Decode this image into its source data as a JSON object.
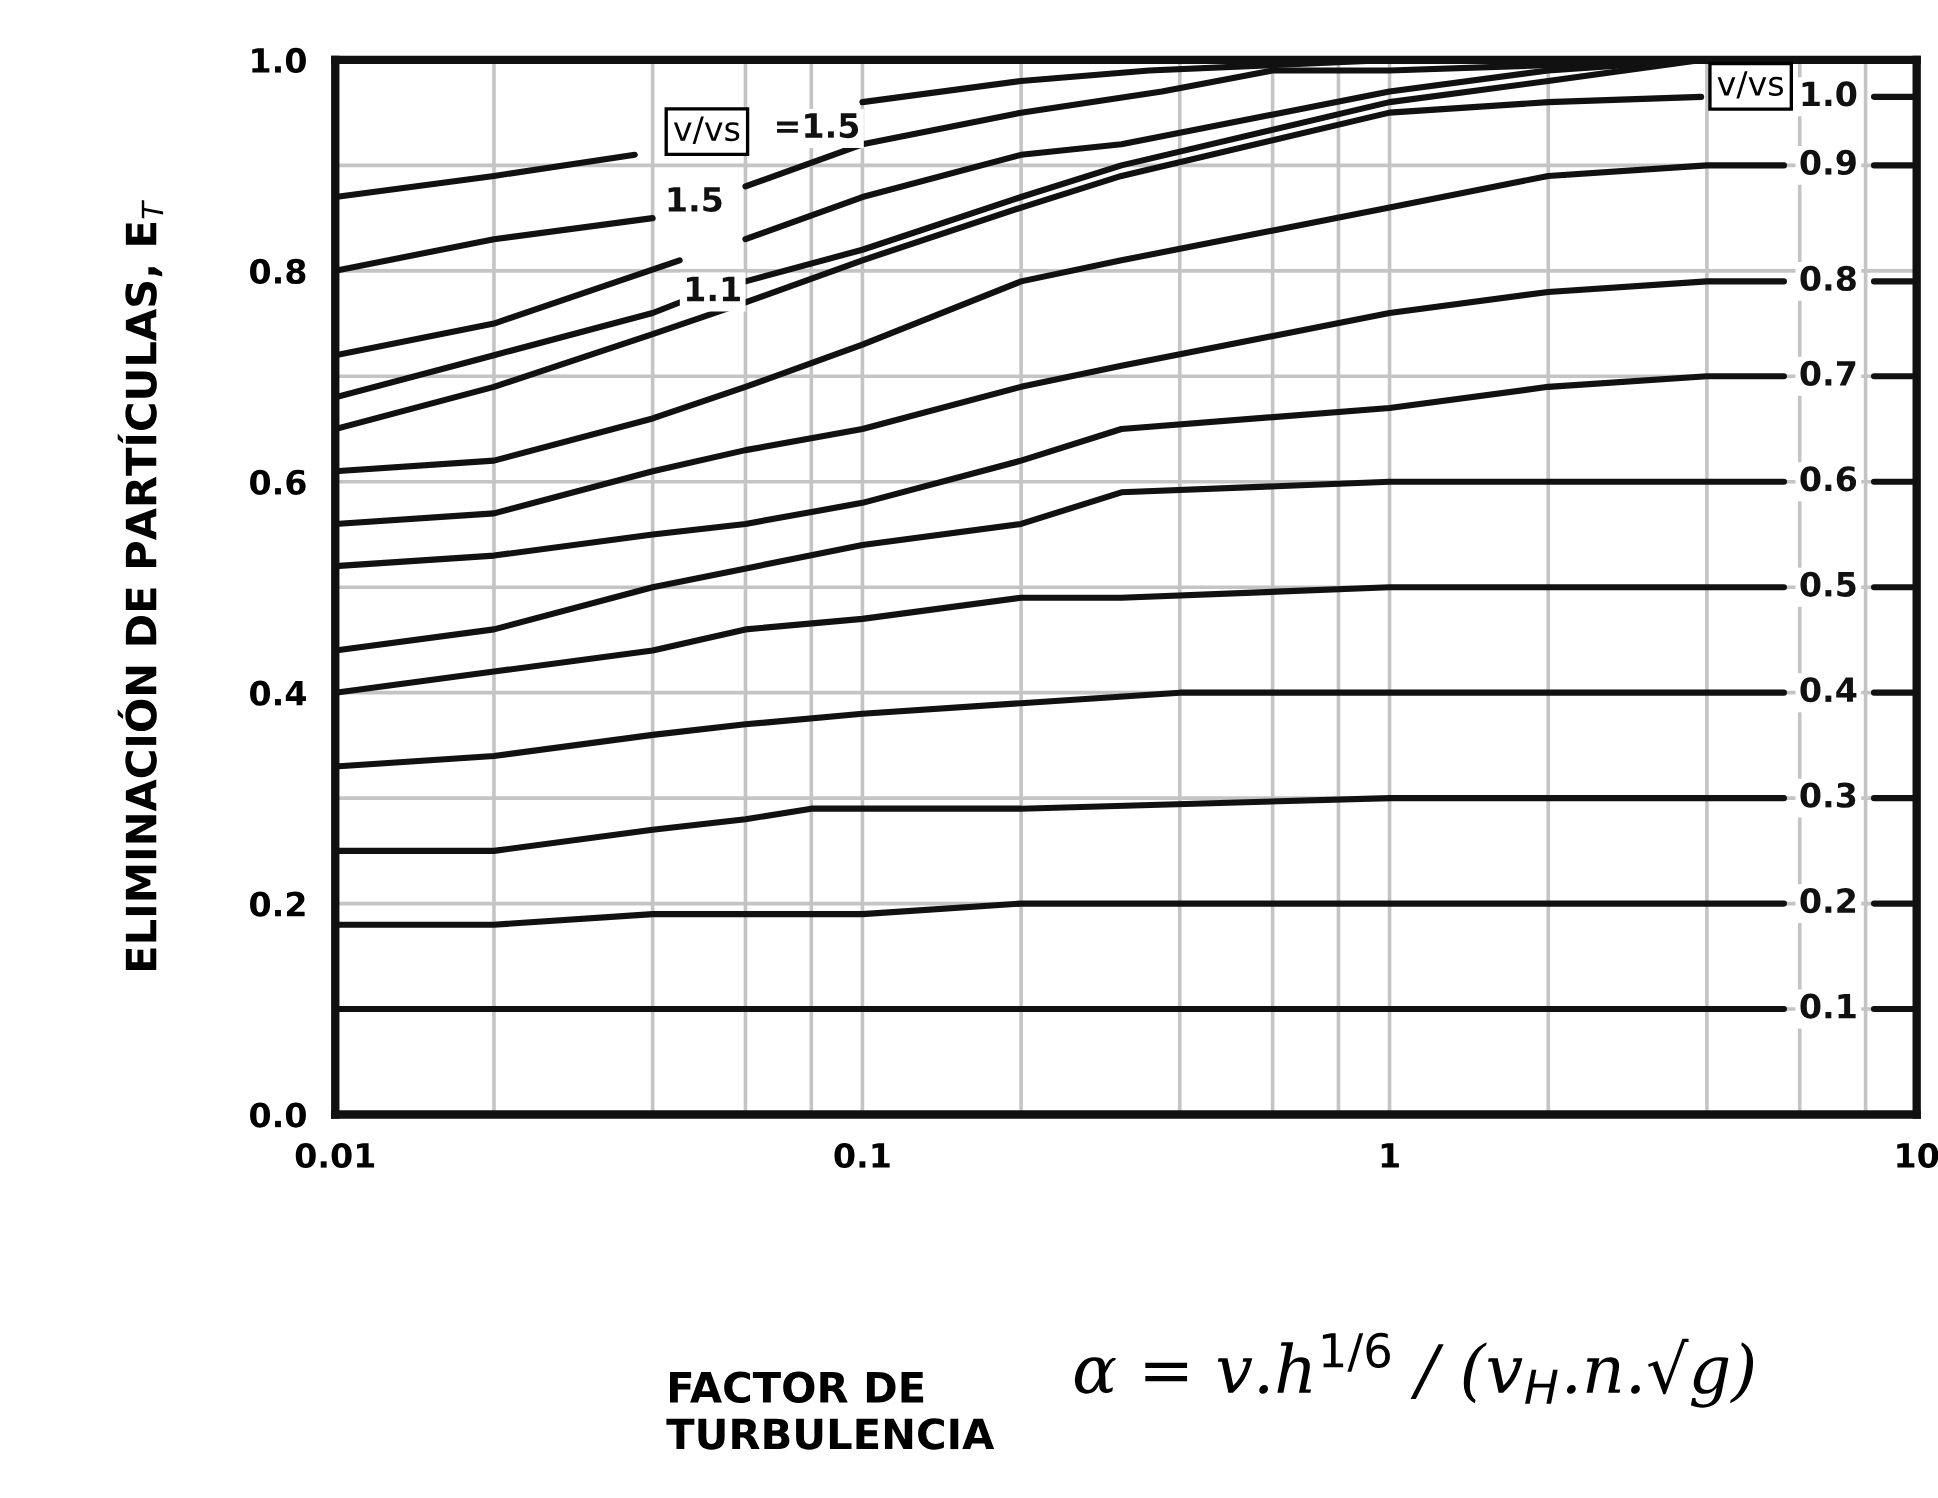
{
  "chart_data": {
    "type": "line",
    "xlabel": "FACTOR DE\nTURBULENCIA",
    "ylabel": "ELIMINACIÓN DE PARTÍCULAS, E$_{T}$",
    "log": "x",
    "xlim": [
      0.01,
      10
    ],
    "ylim": [
      0,
      1
    ],
    "xticks": [
      0.01,
      {
        "value": 0.02,
        "label": null
      },
      {
        "value": 0.04,
        "label": null
      },
      {
        "value": 0.06,
        "label": null
      },
      {
        "value": 0.08,
        "label": null
      },
      0.1,
      {
        "value": 0.2,
        "label": null
      },
      {
        "value": 0.4,
        "label": null
      },
      {
        "value": 0.6,
        "label": null
      },
      {
        "value": 0.8,
        "label": null
      },
      1,
      {
        "value": 2,
        "label": null
      },
      {
        "value": 4,
        "label": null
      },
      {
        "value": 6,
        "label": null
      },
      {
        "value": 8,
        "label": null
      },
      10
    ],
    "yticks": [
      {
        "value": 0,
        "label": "0.0"
      },
      {
        "value": 0.1,
        "label": null
      },
      0.2,
      {
        "value": 0.3,
        "label": null
      },
      0.4,
      {
        "value": 0.5,
        "label": null
      },
      0.6,
      {
        "value": 0.7,
        "label": null
      },
      0.8,
      {
        "value": 0.9,
        "label": null
      },
      {
        "value": 1,
        "label": "1.0"
      }
    ],
    "grid": true,
    "series": [
      {
        "name": "=1.5",
        "color": "#111111",
        "x": [
          0.01,
          0.02,
          0.037,
          0.082,
          0.1,
          0.2,
          0.35,
          1,
          3.9
        ],
        "values": [
          0.87,
          0.89,
          0.91,
          null,
          0.96,
          0.98,
          0.99,
          1.0,
          1.0
        ]
      },
      {
        "name": "1.5",
        "color": "#111111",
        "x": [
          0.01,
          0.02,
          0.04,
          0.048,
          0.06,
          0.1,
          0.2,
          0.37,
          0.6,
          1,
          3.9
        ],
        "values": [
          0.8,
          0.83,
          0.85,
          null,
          0.88,
          0.92,
          0.95,
          0.97,
          0.99,
          0.99,
          1.0
        ]
      },
      {
        "color": "#111111",
        "x": [
          0.01,
          0.02,
          0.045,
          0.052,
          0.06,
          0.1,
          0.2,
          0.31,
          1,
          2,
          3.9
        ],
        "values": [
          0.72,
          0.75,
          0.81,
          null,
          0.83,
          0.87,
          0.91,
          0.92,
          0.97,
          0.99,
          1.0
        ]
      },
      {
        "name": "1.1",
        "color": "#111111",
        "x": [
          0.01,
          0.02,
          0.04,
          0.045,
          0.052,
          0.06,
          0.1,
          0.2,
          0.31,
          1,
          2,
          3.9
        ],
        "values": [
          0.68,
          0.72,
          0.76,
          0.77,
          null,
          0.79,
          0.82,
          0.87,
          0.9,
          0.96,
          0.98,
          1.0
        ]
      },
      {
        "name": "1.0",
        "color": "#111111",
        "x": [
          0.01,
          0.02,
          0.04,
          0.06,
          0.1,
          0.2,
          0.31,
          1,
          2,
          3.9,
          6.8,
          8.3,
          10
        ],
        "values": [
          0.65,
          0.69,
          0.74,
          0.77,
          0.81,
          0.86,
          0.89,
          0.95,
          0.96,
          0.965,
          null,
          0.965,
          0.965
        ]
      },
      {
        "name": "0.9",
        "color": "#111111",
        "x": [
          0.01,
          0.02,
          0.04,
          0.06,
          0.1,
          0.2,
          0.31,
          1,
          2,
          4,
          5.6,
          6.8,
          8.3,
          10
        ],
        "values": [
          0.61,
          0.62,
          0.66,
          0.69,
          0.73,
          0.79,
          0.81,
          0.86,
          0.89,
          0.9,
          0.9,
          null,
          0.9,
          0.9
        ]
      },
      {
        "name": "0.8",
        "color": "#111111",
        "x": [
          0.01,
          0.02,
          0.04,
          0.06,
          0.1,
          0.2,
          0.31,
          1,
          2,
          4,
          5.6,
          6.8,
          8.3,
          10
        ],
        "values": [
          0.56,
          0.57,
          0.61,
          0.63,
          0.65,
          0.69,
          0.71,
          0.76,
          0.78,
          0.79,
          0.79,
          null,
          0.79,
          0.79
        ]
      },
      {
        "name": "0.7",
        "color": "#111111",
        "x": [
          0.01,
          0.02,
          0.04,
          0.06,
          0.1,
          0.2,
          0.31,
          1,
          2,
          4,
          5.6,
          6.8,
          8.3,
          10
        ],
        "values": [
          0.52,
          0.53,
          0.55,
          0.56,
          0.58,
          0.62,
          0.65,
          0.67,
          0.69,
          0.7,
          0.7,
          null,
          0.7,
          0.7
        ]
      },
      {
        "name": "0.6",
        "color": "#111111",
        "x": [
          0.01,
          0.02,
          0.04,
          0.1,
          0.2,
          0.31,
          1,
          2,
          5.6,
          6.8,
          8.3,
          10
        ],
        "values": [
          0.44,
          0.46,
          0.5,
          0.54,
          0.56,
          0.59,
          0.6,
          0.6,
          0.6,
          null,
          0.6,
          0.6
        ]
      },
      {
        "name": "0.5",
        "color": "#111111",
        "x": [
          0.01,
          0.02,
          0.04,
          0.06,
          0.1,
          0.2,
          0.31,
          1,
          5.6,
          6.8,
          8.3,
          10
        ],
        "values": [
          0.4,
          0.42,
          0.44,
          0.46,
          0.47,
          0.49,
          0.49,
          0.5,
          0.5,
          null,
          0.5,
          0.5
        ]
      },
      {
        "name": "0.4",
        "color": "#111111",
        "x": [
          0.01,
          0.02,
          0.04,
          0.06,
          0.1,
          0.2,
          0.4,
          1,
          5.6,
          6.8,
          8.3,
          10
        ],
        "values": [
          0.33,
          0.34,
          0.36,
          0.37,
          0.38,
          0.39,
          0.4,
          0.4,
          0.4,
          null,
          0.4,
          0.4
        ]
      },
      {
        "name": "0.3",
        "color": "#111111",
        "x": [
          0.01,
          0.02,
          0.04,
          0.06,
          0.08,
          0.2,
          1,
          5.6,
          6.8,
          8.3,
          10
        ],
        "values": [
          0.25,
          0.25,
          0.27,
          0.28,
          0.29,
          0.29,
          0.3,
          0.3,
          null,
          0.3,
          0.3
        ]
      },
      {
        "name": "0.2",
        "color": "#111111",
        "x": [
          0.01,
          0.02,
          0.04,
          0.1,
          0.2,
          1,
          5.6,
          6.8,
          8.3,
          10
        ],
        "values": [
          0.18,
          0.18,
          0.19,
          0.19,
          0.2,
          0.2,
          0.2,
          null,
          0.2,
          0.2
        ]
      },
      {
        "name": "0.1",
        "color": "#111111",
        "x": [
          0.01,
          1,
          5.6,
          6.8,
          8.3,
          10
        ],
        "values": [
          0.1,
          0.1,
          0.1,
          null,
          0.1,
          0.1
        ]
      }
    ],
    "annotations": [
      "v/vs",
      "v/vs",
      "α = v.h$^{1/6}$ / (v$_{H}$.n.√g)"
    ]
  }
}
